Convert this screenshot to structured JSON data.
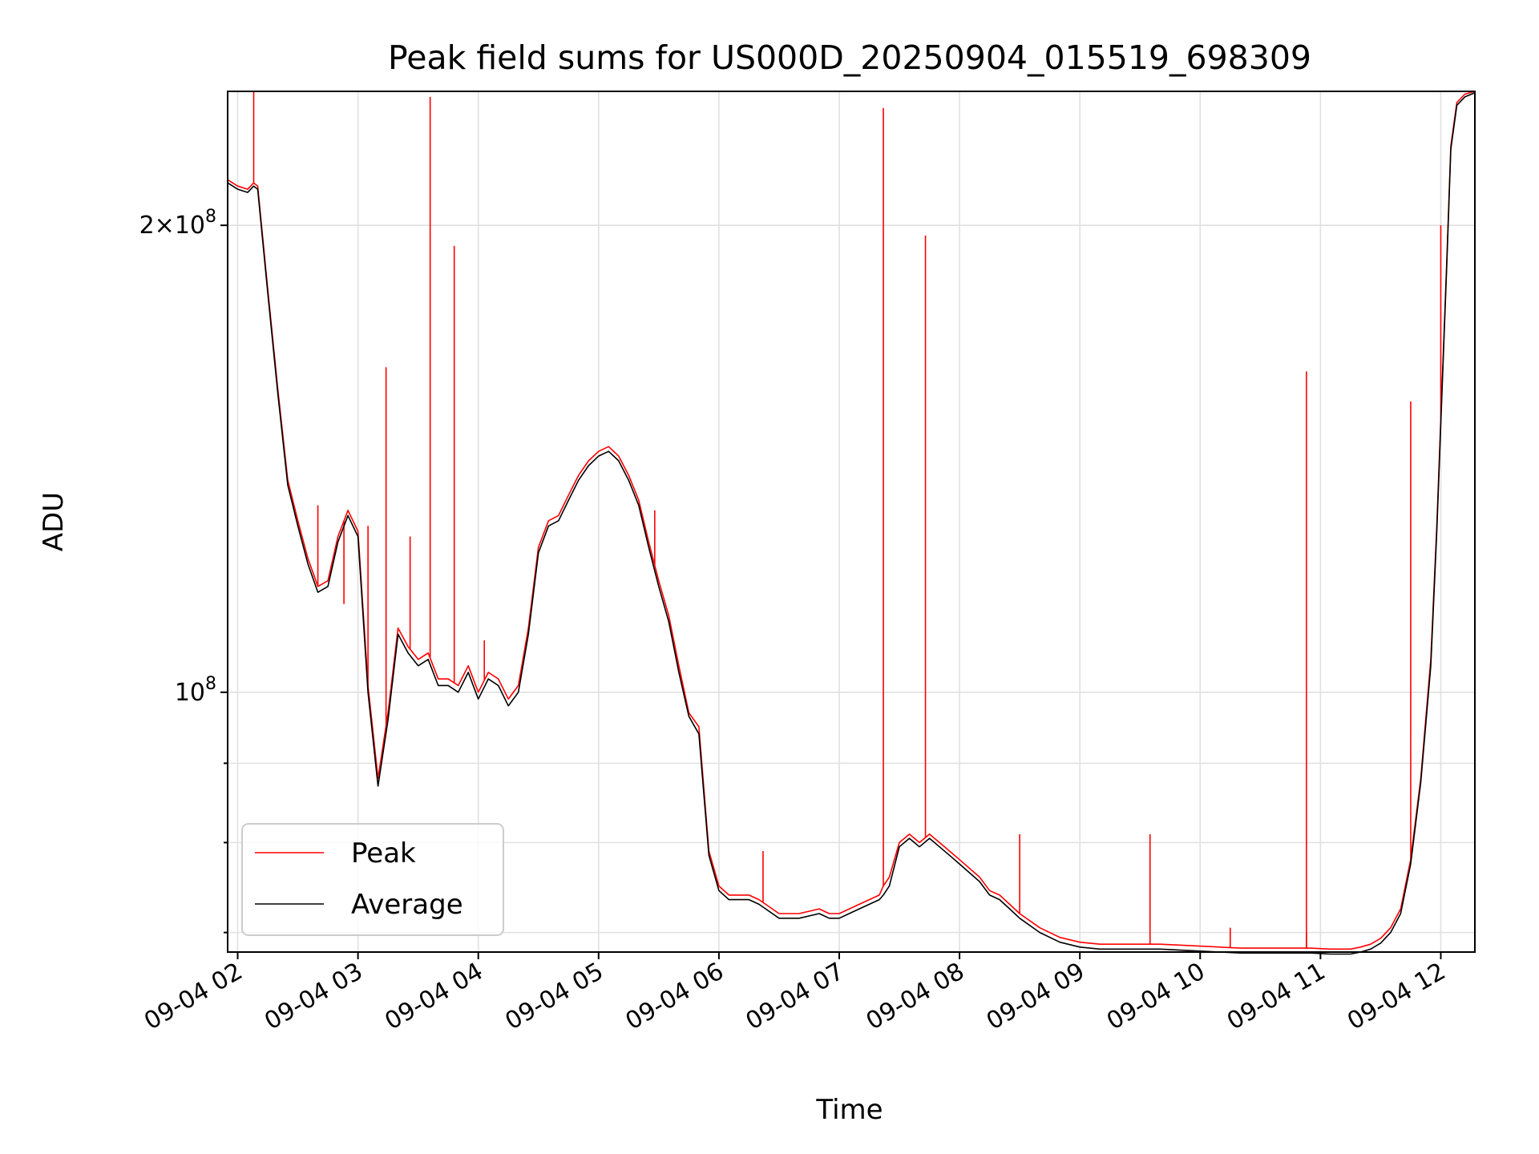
{
  "chart_data": {
    "type": "line",
    "title": "Peak field sums for US000D_20250904_015519_698309",
    "xlabel": "Time",
    "ylabel": "ADU",
    "yscale": "log",
    "ylim": [
      68000000,
      244000000
    ],
    "xlim": [
      "09-04 01:55",
      "09-04 12:17"
    ],
    "grid": true,
    "legend_position": "lower left",
    "x_ticks": [
      "09-04 02",
      "09-04 03",
      "09-04 04",
      "09-04 05",
      "09-04 06",
      "09-04 07",
      "09-04 08",
      "09-04 09",
      "09-04 10",
      "09-04 11",
      "09-04 12"
    ],
    "y_tick_labels": [
      {
        "value": 200000000,
        "label": "2 × 10^8",
        "mantissa": "2",
        "exponent": "8"
      },
      {
        "value": 100000000,
        "label": "10^8",
        "mantissa": "",
        "exponent": "8"
      }
    ],
    "y_minor_ticks": [
      70000000,
      80000000,
      90000000
    ],
    "x": [
      "09-04 01:55",
      "09-04 02:00",
      "09-04 02:05",
      "09-04 02:08",
      "09-04 02:10",
      "09-04 02:15",
      "09-04 02:20",
      "09-04 02:25",
      "09-04 02:30",
      "09-04 02:35",
      "09-04 02:40",
      "09-04 02:45",
      "09-04 02:50",
      "09-04 02:55",
      "09-04 03:00",
      "09-04 03:05",
      "09-04 03:10",
      "09-04 03:15",
      "09-04 03:20",
      "09-04 03:25",
      "09-04 03:30",
      "09-04 03:35",
      "09-04 03:40",
      "09-04 03:45",
      "09-04 03:50",
      "09-04 03:55",
      "09-04 04:00",
      "09-04 04:05",
      "09-04 04:10",
      "09-04 04:15",
      "09-04 04:20",
      "09-04 04:25",
      "09-04 04:30",
      "09-04 04:35",
      "09-04 04:40",
      "09-04 04:45",
      "09-04 04:50",
      "09-04 04:55",
      "09-04 05:00",
      "09-04 05:05",
      "09-04 05:10",
      "09-04 05:15",
      "09-04 05:20",
      "09-04 05:25",
      "09-04 05:30",
      "09-04 05:35",
      "09-04 05:40",
      "09-04 05:45",
      "09-04 05:50",
      "09-04 05:55",
      "09-04 06:00",
      "09-04 06:05",
      "09-04 06:10",
      "09-04 06:15",
      "09-04 06:20",
      "09-04 06:30",
      "09-04 06:40",
      "09-04 06:50",
      "09-04 06:55",
      "09-04 07:00",
      "09-04 07:10",
      "09-04 07:20",
      "09-04 07:22",
      "09-04 07:25",
      "09-04 07:30",
      "09-04 07:35",
      "09-04 07:40",
      "09-04 07:45",
      "09-04 07:50",
      "09-04 07:55",
      "09-04 08:00",
      "09-04 08:10",
      "09-04 08:15",
      "09-04 08:20",
      "09-04 08:25",
      "09-04 08:30",
      "09-04 08:40",
      "09-04 08:50",
      "09-04 09:00",
      "09-04 09:10",
      "09-04 09:20",
      "09-04 09:40",
      "09-04 10:00",
      "09-04 10:20",
      "09-04 10:40",
      "09-04 10:55",
      "09-04 11:05",
      "09-04 11:15",
      "09-04 11:20",
      "09-04 11:25",
      "09-04 11:30",
      "09-04 11:35",
      "09-04 11:40",
      "09-04 11:45",
      "09-04 11:50",
      "09-04 11:55",
      "09-04 11:58",
      "09-04 12:00",
      "09-04 12:03",
      "09-04 12:05",
      "09-04 12:08",
      "09-04 12:12",
      "09-04 12:17"
    ],
    "series": [
      {
        "name": "Peak",
        "color": "#ff0000",
        "values": [
          214,
          212,
          211,
          213,
          212,
          182,
          157,
          137,
          129,
          122,
          117,
          118,
          126,
          131,
          127,
          101,
          88,
          97,
          110,
          107,
          105,
          106,
          102,
          102,
          101,
          104,
          100,
          103,
          102,
          99,
          101,
          110,
          124,
          129,
          130,
          134,
          138,
          141,
          143,
          144,
          142,
          138,
          133,
          125,
          118,
          112,
          104,
          97,
          95,
          79,
          75,
          74,
          74,
          74,
          73.5,
          72,
          72,
          72.5,
          72,
          72,
          73,
          74,
          75,
          76,
          80,
          81,
          80,
          81,
          80,
          79,
          78,
          76,
          74.5,
          74,
          73,
          72,
          70.5,
          69.5,
          69,
          68.8,
          68.8,
          68.8,
          68.6,
          68.4,
          68.4,
          68.4,
          68.3,
          68.3,
          68.5,
          68.8,
          69.4,
          70.5,
          72.5,
          78,
          88,
          105,
          128,
          150,
          190,
          225,
          240,
          243,
          244
        ],
        "spikes": [
          {
            "x": "09-04 02:08",
            "value": 244000000
          },
          {
            "x": "09-04 02:40",
            "value": 132000000
          },
          {
            "x": "09-04 02:53",
            "value": 114000000
          },
          {
            "x": "09-04 03:05",
            "value": 128000000
          },
          {
            "x": "09-04 03:14",
            "value": 162000000
          },
          {
            "x": "09-04 03:26",
            "value": 126000000
          },
          {
            "x": "09-04 03:36",
            "value": 242000000
          },
          {
            "x": "09-04 03:48",
            "value": 194000000
          },
          {
            "x": "09-04 04:03",
            "value": 108000000
          },
          {
            "x": "09-04 05:28",
            "value": 131000000
          },
          {
            "x": "09-04 06:22",
            "value": 79000000
          },
          {
            "x": "09-04 07:22",
            "value": 238000000
          },
          {
            "x": "09-04 07:43",
            "value": 197000000
          },
          {
            "x": "09-04 08:30",
            "value": 81000000
          },
          {
            "x": "09-04 09:35",
            "value": 81000000
          },
          {
            "x": "09-04 10:15",
            "value": 70500000
          },
          {
            "x": "09-04 10:53",
            "value": 70000000
          },
          {
            "x": "09-04 10:53",
            "value": 161000000
          },
          {
            "x": "09-04 11:45",
            "value": 154000000
          },
          {
            "x": "09-04 12:00",
            "value": 200000000
          }
        ]
      },
      {
        "name": "Average",
        "color": "#000000",
        "values": [
          213,
          211,
          210,
          212,
          211,
          181,
          156,
          136,
          128,
          121,
          116,
          117,
          125,
          130,
          126,
          100,
          87,
          96,
          109,
          106,
          104,
          105,
          101,
          101,
          100,
          103,
          99,
          102,
          101,
          98,
          100,
          109,
          123,
          128,
          129,
          133,
          137,
          140,
          142,
          143,
          141,
          137,
          132,
          124,
          117,
          111,
          103,
          96.5,
          94,
          78.5,
          74.5,
          73.5,
          73.5,
          73.5,
          73,
          71.5,
          71.5,
          72,
          71.5,
          71.5,
          72.5,
          73.5,
          74,
          75,
          79.5,
          80.5,
          79.5,
          80.5,
          79.5,
          78.5,
          77.5,
          75.5,
          74,
          73.5,
          72.5,
          71.5,
          70,
          69,
          68.5,
          68.3,
          68.3,
          68.3,
          68.1,
          67.9,
          67.9,
          67.9,
          67.8,
          67.8,
          68,
          68.3,
          68.9,
          70,
          72,
          77.5,
          87.5,
          104,
          127,
          149,
          189,
          224,
          239,
          242,
          243.5
        ]
      }
    ]
  },
  "legend": {
    "items": [
      {
        "label": "Peak",
        "color": "#ff0000"
      },
      {
        "label": "Average",
        "color": "#000000"
      }
    ]
  }
}
